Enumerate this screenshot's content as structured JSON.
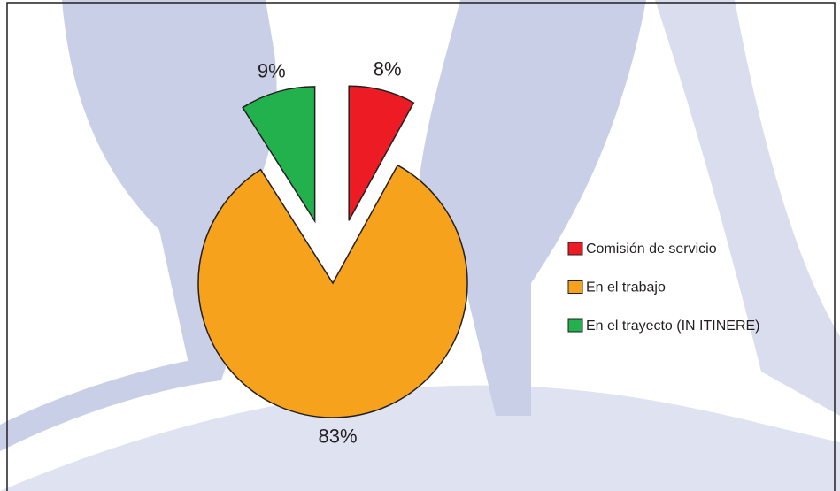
{
  "chart_data": {
    "type": "pie",
    "categories": [
      "Comisión de servicio",
      "En el trabajo",
      "En el trayecto (IN ITINERE)"
    ],
    "values": [
      8,
      83,
      9
    ],
    "value_labels": [
      "8%",
      "83%",
      "9%"
    ],
    "colors": [
      "#ed1c24",
      "#f7a21d",
      "#22b14c"
    ],
    "legend": "right"
  }
}
